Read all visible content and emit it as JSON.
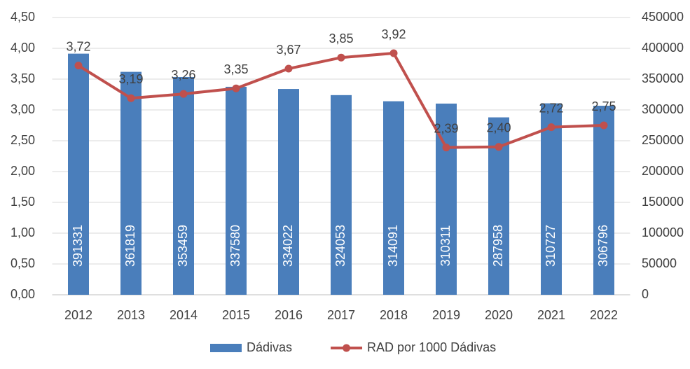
{
  "chart_data": {
    "type": "combo",
    "categories": [
      "2012",
      "2013",
      "2014",
      "2015",
      "2016",
      "2017",
      "2018",
      "2019",
      "2020",
      "2021",
      "2022"
    ],
    "series": [
      {
        "name": "Dádivas",
        "type": "bar",
        "axis": "y2",
        "color": "#4a7ebb",
        "values": [
          391331,
          361819,
          353459,
          337580,
          334022,
          324053,
          314091,
          310311,
          287958,
          310727,
          306796
        ]
      },
      {
        "name": "RAD por 1000 Dádivas",
        "type": "line",
        "axis": "y",
        "color": "#c0504d",
        "values": [
          3.72,
          3.19,
          3.26,
          3.35,
          3.67,
          3.85,
          3.92,
          2.39,
          2.4,
          2.72,
          2.75
        ],
        "value_labels": [
          "3,72",
          "3,19",
          "3,26",
          "3,35",
          "3,67",
          "3,85",
          "3,92",
          "2,39",
          "2,40",
          "2,72",
          "2,75"
        ]
      }
    ],
    "ylim": [
      0,
      4.5
    ],
    "yticks": [
      {
        "value": 0,
        "label": "0,00"
      },
      {
        "value": 0.5,
        "label": "0,50"
      },
      {
        "value": 1,
        "label": "1,00"
      },
      {
        "value": 1.5,
        "label": "1,50"
      },
      {
        "value": 2,
        "label": "2,00"
      },
      {
        "value": 2.5,
        "label": "2,50"
      },
      {
        "value": 3,
        "label": "3,00"
      },
      {
        "value": 3.5,
        "label": "3,50"
      },
      {
        "value": 4,
        "label": "4,00"
      },
      {
        "value": 4.5,
        "label": "4,50"
      }
    ],
    "y2lim": [
      0,
      450000
    ],
    "y2ticks": [
      0,
      50000,
      100000,
      150000,
      200000,
      250000,
      300000,
      350000,
      400000,
      450000
    ],
    "grid": true,
    "legend": "bottom"
  }
}
